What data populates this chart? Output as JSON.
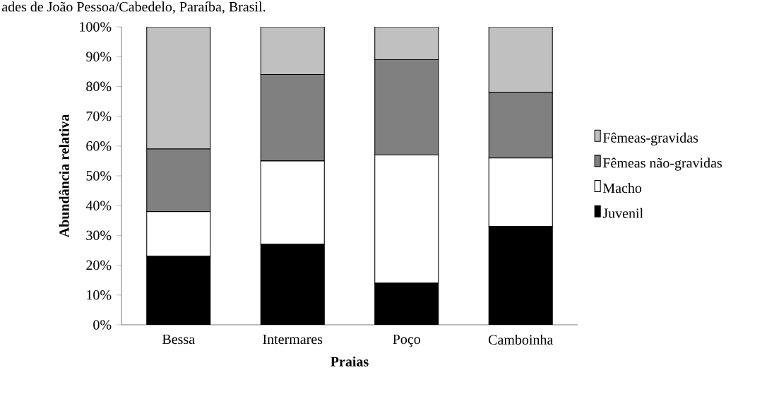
{
  "chart_data": {
    "type": "bar",
    "stacked": true,
    "annotations": [
      "ades de João Pessoa/Cabedelo, Paraíba, Brasil."
    ],
    "xlabel": "Praias",
    "ylabel": "Abundância relativa",
    "categories": [
      "Bessa",
      "Intermares",
      "Poço",
      "Camboinha"
    ],
    "series": [
      {
        "name": "Juvenil",
        "color": "#000000",
        "values": [
          23,
          27,
          14,
          33
        ]
      },
      {
        "name": "Macho",
        "color": "#ffffff",
        "values": [
          15,
          28,
          43,
          23
        ]
      },
      {
        "name": "Fêmeas não-gravidas",
        "color": "#808080",
        "values": [
          21,
          29,
          32,
          22
        ]
      },
      {
        "name": "Fêmeas-gravidas",
        "color": "#c0c0c0",
        "values": [
          41,
          16,
          11,
          22
        ]
      }
    ],
    "ylim": [
      0,
      100
    ],
    "yticks": [
      {
        "value": 0,
        "label": "0%"
      },
      {
        "value": 10,
        "label": "10%"
      },
      {
        "value": 20,
        "label": "20%"
      },
      {
        "value": 30,
        "label": "30%"
      },
      {
        "value": 40,
        "label": "40%"
      },
      {
        "value": 50,
        "label": "50%"
      },
      {
        "value": 60,
        "label": "60%"
      },
      {
        "value": 70,
        "label": "70%"
      },
      {
        "value": 80,
        "label": "80%"
      },
      {
        "value": 90,
        "label": "90%"
      },
      {
        "value": 100,
        "label": "100%"
      }
    ],
    "legend": "right",
    "grid": false
  }
}
